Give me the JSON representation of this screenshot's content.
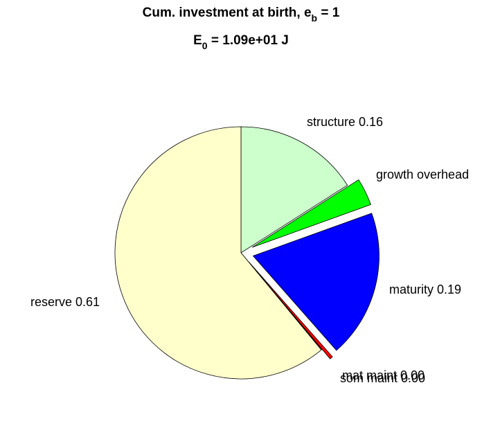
{
  "title": {
    "line1_prefix": "Cum. investment at birth, e",
    "line1_sub": "b",
    "line1_suffix": " = 1",
    "line2_prefix": "E",
    "line2_sub": "0",
    "line2_suffix": " = 1.09e+01 J"
  },
  "chart_data": {
    "type": "pie",
    "title": "Cum. investment at birth, e_b = 1 / E_0 = 1.09e+01 J",
    "start_angle_deg": 90,
    "direction": "clockwise",
    "slices": [
      {
        "name": "structure",
        "label": "structure 0.16",
        "value": 0.16,
        "color": "#ccffcc",
        "exploded": false
      },
      {
        "name": "growth overhead",
        "label": "growth overhead",
        "value": 0.035,
        "color": "#00ff00",
        "exploded": true
      },
      {
        "name": "maturity",
        "label": "maturity 0.19",
        "value": 0.19,
        "color": "#0000ff",
        "exploded": true
      },
      {
        "name": "mat maint",
        "label": "mat maint 0.00",
        "value": 0.004,
        "color": "#ff0000",
        "exploded": true
      },
      {
        "name": "som maint",
        "label": "som maint 0.00",
        "value": 0.001,
        "color": "#ff0000",
        "exploded": false
      },
      {
        "name": "reserve",
        "label": "reserve 0.61",
        "value": 0.61,
        "color": "#ffffcc",
        "exploded": false
      }
    ]
  }
}
